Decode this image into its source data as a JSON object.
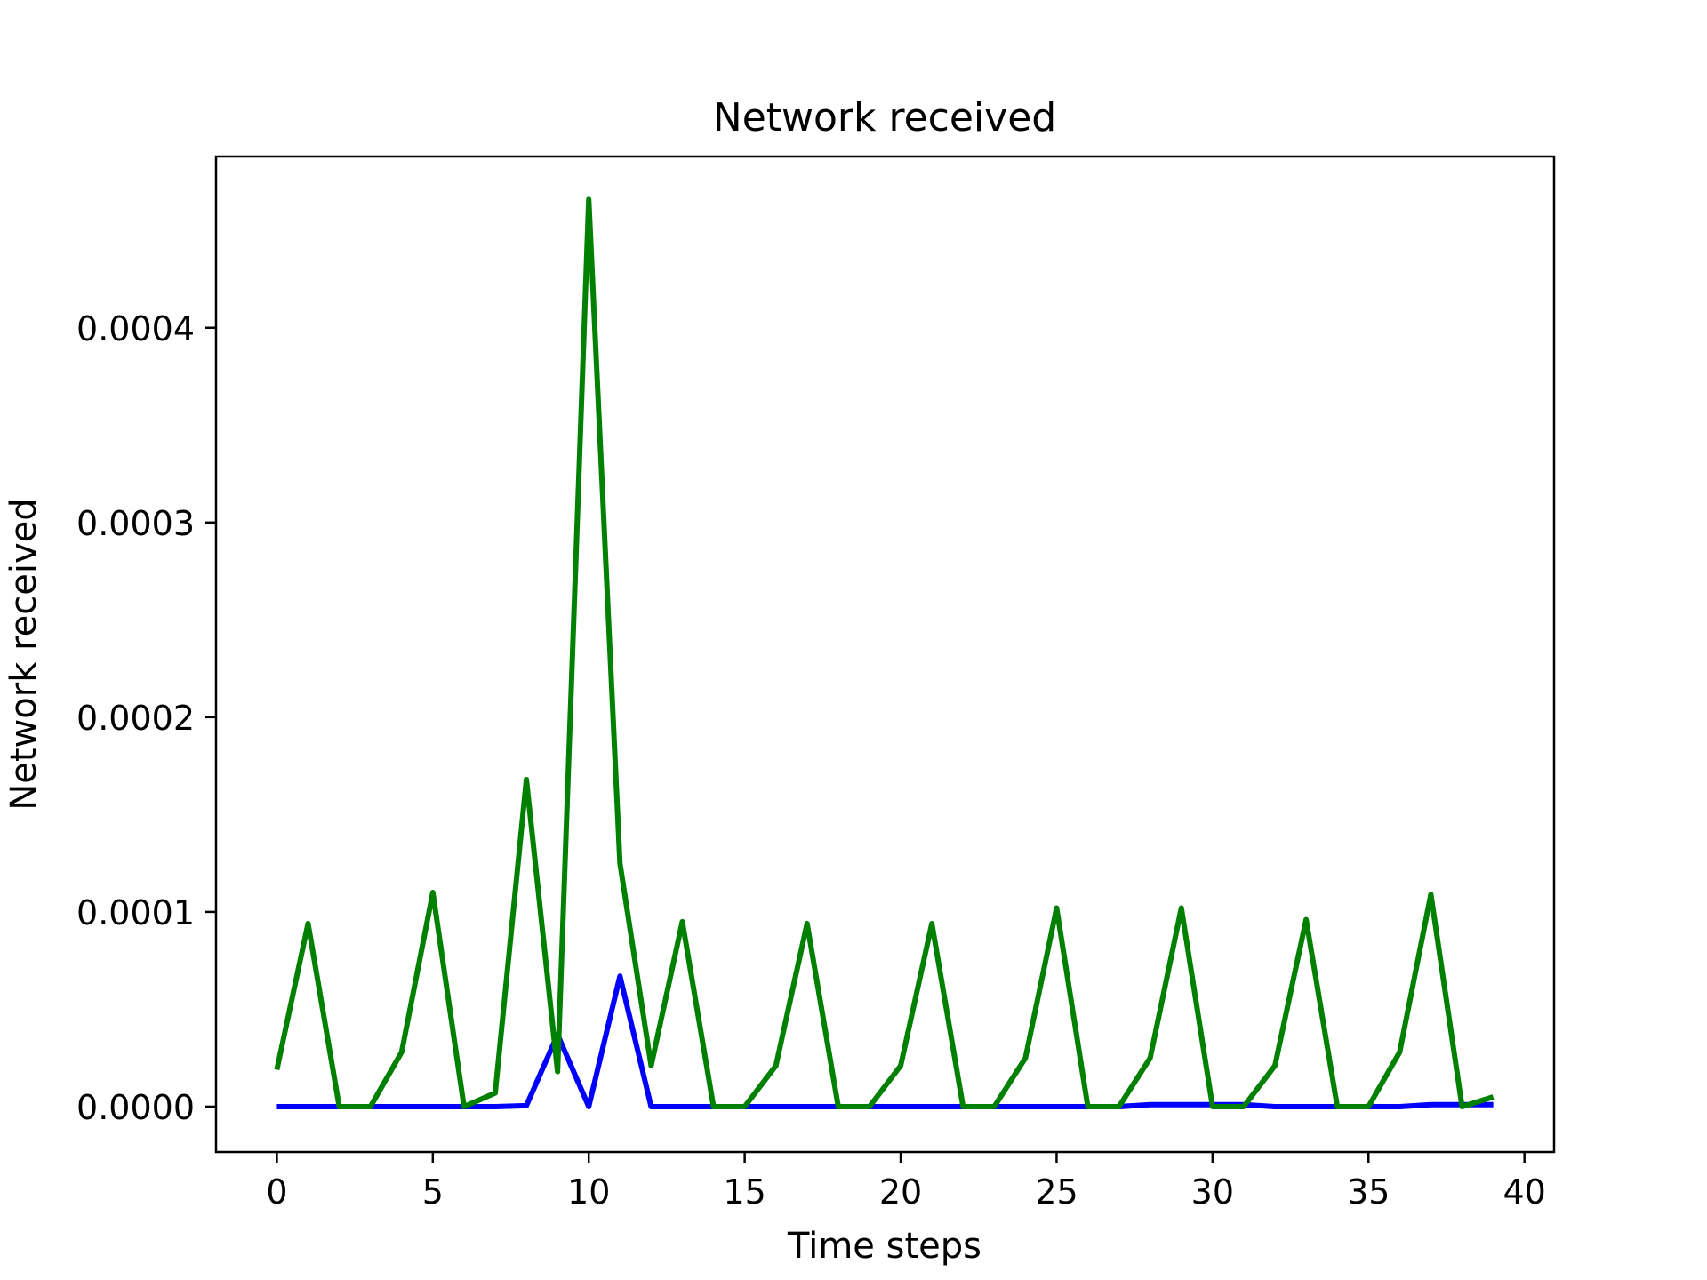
{
  "chart_data": {
    "type": "line",
    "title": "Network received",
    "xlabel": "Time steps",
    "ylabel": "Network received",
    "xlim": [
      -1.95,
      40.95
    ],
    "ylim": [
      -2.33e-05,
      0.000488
    ],
    "x_ticks": [
      0,
      5,
      10,
      15,
      20,
      25,
      30,
      35,
      40
    ],
    "x_tick_labels": [
      "0",
      "5",
      "10",
      "15",
      "20",
      "25",
      "30",
      "35",
      "40"
    ],
    "y_ticks": [
      0,
      0.0001,
      0.0002,
      0.0003,
      0.0004
    ],
    "y_tick_labels": [
      "0.0000",
      "0.0001",
      "0.0002",
      "0.0003",
      "0.0004"
    ],
    "grid": false,
    "legend": "none",
    "x": [
      0,
      1,
      2,
      3,
      4,
      5,
      6,
      7,
      8,
      9,
      10,
      11,
      12,
      13,
      14,
      15,
      16,
      17,
      18,
      19,
      20,
      21,
      22,
      23,
      24,
      25,
      26,
      27,
      28,
      29,
      30,
      31,
      32,
      33,
      34,
      35,
      36,
      37,
      38,
      39
    ],
    "series": [
      {
        "color": "#0000ff",
        "values": [
          0,
          0,
          0,
          0,
          0,
          0,
          0,
          0,
          5e-07,
          3.7e-05,
          0,
          6.7e-05,
          0,
          0,
          0,
          0,
          0,
          0,
          0,
          0,
          0,
          0,
          0,
          0,
          0,
          0,
          0,
          0,
          1e-06,
          1e-06,
          1e-06,
          1e-06,
          0,
          0,
          0,
          0,
          0,
          1e-06,
          1e-06,
          1e-06
        ]
      },
      {
        "color": "#008000",
        "values": [
          1.9e-05,
          9.4e-05,
          0,
          0,
          2.8e-05,
          0.00011,
          0,
          7e-06,
          0.000168,
          1.8e-05,
          0.000466,
          0.000125,
          2.1e-05,
          9.5e-05,
          0,
          0,
          2.1e-05,
          9.4e-05,
          0,
          0,
          2.1e-05,
          9.4e-05,
          0,
          0,
          2.5e-05,
          0.000102,
          0,
          0,
          2.5e-05,
          0.000102,
          0,
          0,
          2.1e-05,
          9.6e-05,
          0,
          0,
          2.8e-05,
          0.000109,
          0,
          5e-06
        ]
      }
    ]
  }
}
